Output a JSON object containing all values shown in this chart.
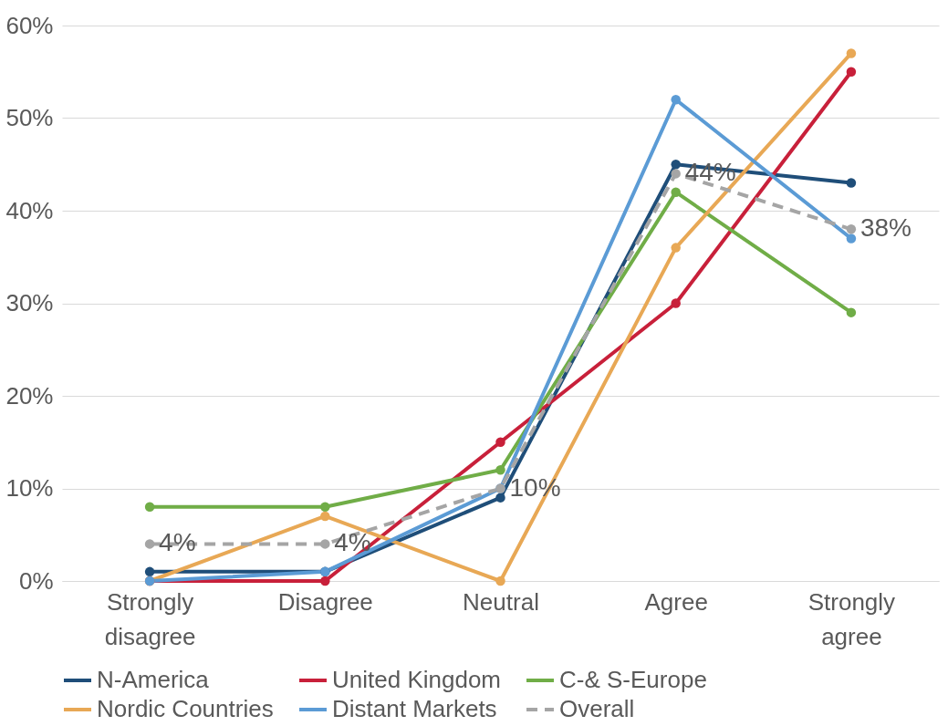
{
  "chart_data": {
    "type": "line",
    "categories": [
      "Strongly disagree",
      "Disagree",
      "Neutral",
      "Agree",
      "Strongly agree"
    ],
    "series": [
      {
        "name": "N-America",
        "color": "#1f4e79",
        "values": [
          1,
          1,
          9,
          45,
          43
        ]
      },
      {
        "name": "United Kingdom",
        "color": "#c8203a",
        "values": [
          0,
          0,
          15,
          30,
          55
        ]
      },
      {
        "name": "C-& S-Europe",
        "color": "#70ad47",
        "values": [
          8,
          8,
          12,
          42,
          29
        ]
      },
      {
        "name": "Nordic Countries",
        "color": "#e8a855",
        "values": [
          0,
          7,
          0,
          36,
          57
        ]
      },
      {
        "name": "Distant Markets",
        "color": "#5b9bd5",
        "values": [
          0,
          1,
          10,
          52,
          37
        ]
      },
      {
        "name": "Overall",
        "color": "#a5a5a5",
        "line_style": "dashed",
        "values": [
          4,
          4,
          10,
          44,
          38
        ],
        "value_labels": [
          "4%",
          "4%",
          "10%",
          "44%",
          "38%"
        ]
      }
    ],
    "ylim": [
      0,
      60
    ],
    "yticks": [
      {
        "value": 0,
        "label": "0%"
      },
      {
        "value": 10,
        "label": "10%"
      },
      {
        "value": 20,
        "label": "20%"
      },
      {
        "value": 30,
        "label": "30%"
      },
      {
        "value": 40,
        "label": "40%"
      },
      {
        "value": 50,
        "label": "50%"
      },
      {
        "value": 60,
        "label": "60%"
      }
    ],
    "grid": "y",
    "legend": "bottom",
    "marker": "circle",
    "line_style": "solid"
  }
}
